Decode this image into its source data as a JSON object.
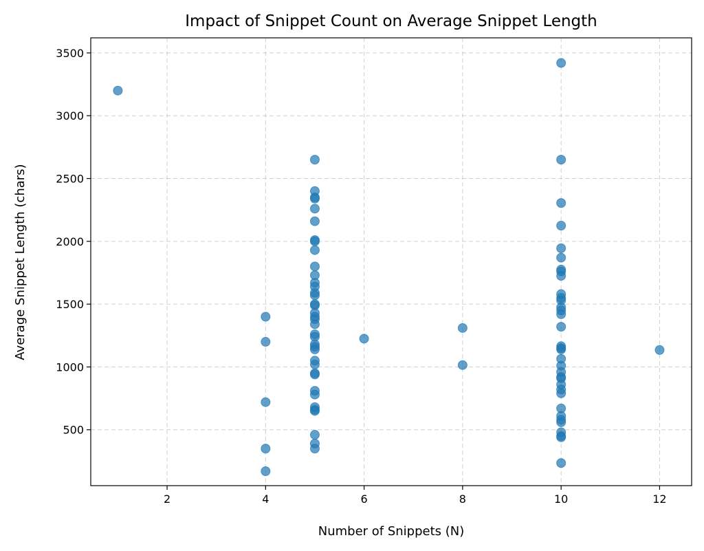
{
  "chart_data": {
    "type": "scatter",
    "title": "Impact of Snippet Count on Average Snippet Length",
    "xlabel": "Number of Snippets (N)",
    "ylabel": "Average Snippet Length (chars)",
    "xlim": [
      0.45,
      12.65
    ],
    "ylim": [
      55,
      3620
    ],
    "xticks": [
      2,
      4,
      6,
      8,
      10,
      12
    ],
    "yticks": [
      500,
      1000,
      1500,
      2000,
      2500,
      3000,
      3500
    ],
    "grid": true,
    "color": "#1f77b4",
    "points": [
      {
        "x": 1,
        "y": 3200
      },
      {
        "x": 4,
        "y": 1400
      },
      {
        "x": 4,
        "y": 1200
      },
      {
        "x": 4,
        "y": 720
      },
      {
        "x": 4,
        "y": 350
      },
      {
        "x": 4,
        "y": 170
      },
      {
        "x": 5,
        "y": 2650
      },
      {
        "x": 5,
        "y": 2400
      },
      {
        "x": 5,
        "y": 2350
      },
      {
        "x": 5,
        "y": 2340
      },
      {
        "x": 5,
        "y": 2260
      },
      {
        "x": 5,
        "y": 2160
      },
      {
        "x": 5,
        "y": 2010
      },
      {
        "x": 5,
        "y": 2000
      },
      {
        "x": 5,
        "y": 1930
      },
      {
        "x": 5,
        "y": 1800
      },
      {
        "x": 5,
        "y": 1730
      },
      {
        "x": 5,
        "y": 1670
      },
      {
        "x": 5,
        "y": 1640
      },
      {
        "x": 5,
        "y": 1590
      },
      {
        "x": 5,
        "y": 1570
      },
      {
        "x": 5,
        "y": 1500
      },
      {
        "x": 5,
        "y": 1490
      },
      {
        "x": 5,
        "y": 1430
      },
      {
        "x": 5,
        "y": 1400
      },
      {
        "x": 5,
        "y": 1380
      },
      {
        "x": 5,
        "y": 1340
      },
      {
        "x": 5,
        "y": 1260
      },
      {
        "x": 5,
        "y": 1240
      },
      {
        "x": 5,
        "y": 1180
      },
      {
        "x": 5,
        "y": 1160
      },
      {
        "x": 5,
        "y": 1140
      },
      {
        "x": 5,
        "y": 1050
      },
      {
        "x": 5,
        "y": 1020
      },
      {
        "x": 5,
        "y": 950
      },
      {
        "x": 5,
        "y": 940
      },
      {
        "x": 5,
        "y": 810
      },
      {
        "x": 5,
        "y": 780
      },
      {
        "x": 5,
        "y": 680
      },
      {
        "x": 5,
        "y": 660
      },
      {
        "x": 5,
        "y": 650
      },
      {
        "x": 5,
        "y": 460
      },
      {
        "x": 5,
        "y": 390
      },
      {
        "x": 5,
        "y": 350
      },
      {
        "x": 6,
        "y": 1225
      },
      {
        "x": 8,
        "y": 1310
      },
      {
        "x": 8,
        "y": 1015
      },
      {
        "x": 10,
        "y": 3420
      },
      {
        "x": 10,
        "y": 2650
      },
      {
        "x": 10,
        "y": 2305
      },
      {
        "x": 10,
        "y": 2125
      },
      {
        "x": 10,
        "y": 1945
      },
      {
        "x": 10,
        "y": 1870
      },
      {
        "x": 10,
        "y": 1775
      },
      {
        "x": 10,
        "y": 1760
      },
      {
        "x": 10,
        "y": 1725
      },
      {
        "x": 10,
        "y": 1580
      },
      {
        "x": 10,
        "y": 1550
      },
      {
        "x": 10,
        "y": 1530
      },
      {
        "x": 10,
        "y": 1475
      },
      {
        "x": 10,
        "y": 1450
      },
      {
        "x": 10,
        "y": 1420
      },
      {
        "x": 10,
        "y": 1320
      },
      {
        "x": 10,
        "y": 1165
      },
      {
        "x": 10,
        "y": 1150
      },
      {
        "x": 10,
        "y": 1140
      },
      {
        "x": 10,
        "y": 1065
      },
      {
        "x": 10,
        "y": 1010
      },
      {
        "x": 10,
        "y": 960
      },
      {
        "x": 10,
        "y": 920
      },
      {
        "x": 10,
        "y": 910
      },
      {
        "x": 10,
        "y": 860
      },
      {
        "x": 10,
        "y": 820
      },
      {
        "x": 10,
        "y": 790
      },
      {
        "x": 10,
        "y": 670
      },
      {
        "x": 10,
        "y": 610
      },
      {
        "x": 10,
        "y": 580
      },
      {
        "x": 10,
        "y": 560
      },
      {
        "x": 10,
        "y": 480
      },
      {
        "x": 10,
        "y": 450
      },
      {
        "x": 10,
        "y": 440
      },
      {
        "x": 10,
        "y": 235
      },
      {
        "x": 12,
        "y": 1135
      }
    ]
  }
}
